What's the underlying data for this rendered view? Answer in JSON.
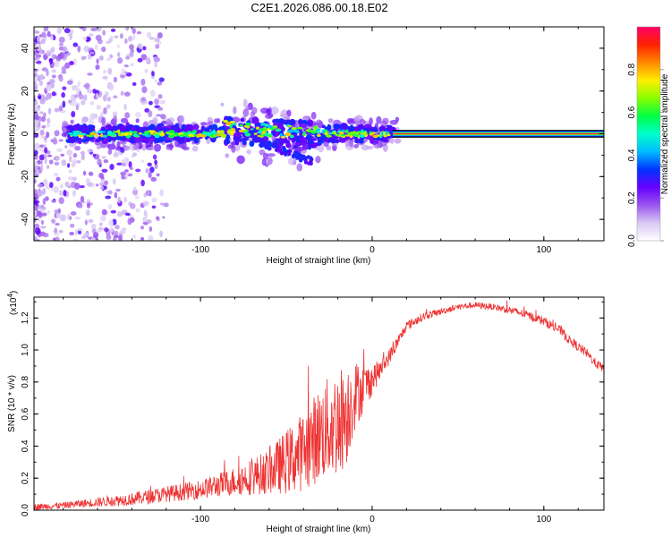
{
  "title": "C2E1.2026.086.00.18.E02",
  "colors": {
    "snr_line": "#ee3333",
    "background": "#ffffff",
    "axis": "#000000"
  },
  "chart_data": [
    {
      "type": "heatmap",
      "name": "spectrogram",
      "xlabel": "Height of straight line (km)",
      "ylabel": "Frequency (Hz)",
      "xlim": [
        -197,
        135
      ],
      "ylim": [
        -50,
        50
      ],
      "xticks": [
        -100,
        0,
        100
      ],
      "yticks": [
        -40,
        -20,
        0,
        20,
        40
      ],
      "xtick_labels": [
        "-100",
        "0",
        "100"
      ],
      "ytick_labels": [
        "-40",
        "-20",
        "0",
        "20",
        "40"
      ],
      "colorbar": {
        "label": "Normalized spectral amplitude",
        "range": [
          0,
          1
        ],
        "ticks": [
          0.0,
          0.2,
          0.4,
          0.6,
          0.8
        ],
        "tick_labels": [
          "0.0",
          "0.2",
          "0.4",
          "0.6",
          "0.8"
        ],
        "colormap": [
          "#ffffff",
          "#d8c8f4",
          "#9a55ee",
          "#6600ff",
          "#0033ff",
          "#00bbff",
          "#00ffcc",
          "#00ff44",
          "#88ff00",
          "#ffee00",
          "#ff8800",
          "#ff2200",
          "#ff0066"
        ]
      },
      "features": [
        {
          "label": "noise",
          "x_range": [
            -197,
            -130
          ],
          "freq_range": [
            -50,
            50
          ],
          "amplitude": 0.05
        },
        {
          "label": "meteor trace",
          "x_range": [
            -178,
            -88
          ],
          "freq_center": 0,
          "amplitude": 0.35
        },
        {
          "label": "broadened trace",
          "x_range": [
            -86,
            -30
          ],
          "freq_center": 1,
          "amplitude": 0.4
        },
        {
          "label": "trace",
          "x_range": [
            -30,
            12
          ],
          "freq_center": 0,
          "amplitude": 0.45
        },
        {
          "label": "steady carrier",
          "x_range": [
            12,
            135
          ],
          "freq_center": 0,
          "amplitude": 1.0
        }
      ]
    },
    {
      "type": "line",
      "name": "snr",
      "xlabel": "Height of straight line (km)",
      "ylabel": "SNR (10 * v/v)",
      "y_multiplier_label": "(x10",
      "y_multiplier_exp": "4",
      "y_multiplier_close": ")",
      "xlim": [
        -197,
        135
      ],
      "ylim": [
        0,
        1.33
      ],
      "xticks": [
        -100,
        0,
        100
      ],
      "yticks": [
        0.0,
        0.2,
        0.4,
        0.6,
        0.8,
        1.0,
        1.2
      ],
      "xtick_labels": [
        "-100",
        "0",
        "100"
      ],
      "ytick_labels": [
        "0.0",
        "0.2",
        "0.4",
        "0.6",
        "0.8",
        "1.0",
        "1.2"
      ],
      "series": [
        {
          "name": "SNR",
          "color": "#ee3333",
          "x": [
            -197,
            -180,
            -160,
            -140,
            -120,
            -100,
            -80,
            -60,
            -50,
            -40,
            -30,
            -20,
            -15,
            -10,
            -5,
            0,
            5,
            10,
            15,
            20,
            30,
            40,
            50,
            60,
            70,
            80,
            90,
            100,
            110,
            115,
            120,
            125,
            130,
            135
          ],
          "y": [
            0.02,
            0.03,
            0.05,
            0.07,
            0.1,
            0.13,
            0.18,
            0.24,
            0.3,
            0.37,
            0.48,
            0.55,
            0.6,
            0.72,
            0.76,
            0.82,
            0.88,
            0.96,
            1.05,
            1.15,
            1.21,
            1.24,
            1.27,
            1.28,
            1.27,
            1.25,
            1.22,
            1.18,
            1.12,
            1.06,
            1.02,
            0.98,
            0.92,
            0.88
          ],
          "noise_amplitude": [
            0.02,
            0.02,
            0.03,
            0.04,
            0.05,
            0.06,
            0.09,
            0.14,
            0.2,
            0.25,
            0.3,
            0.35,
            0.32,
            0.22,
            0.15,
            0.1,
            0.06,
            0.05,
            0.04,
            0.03,
            0.025,
            0.02,
            0.02,
            0.02,
            0.02,
            0.025,
            0.025,
            0.03,
            0.03,
            0.03,
            0.03,
            0.03,
            0.03,
            0.03
          ]
        }
      ]
    }
  ]
}
